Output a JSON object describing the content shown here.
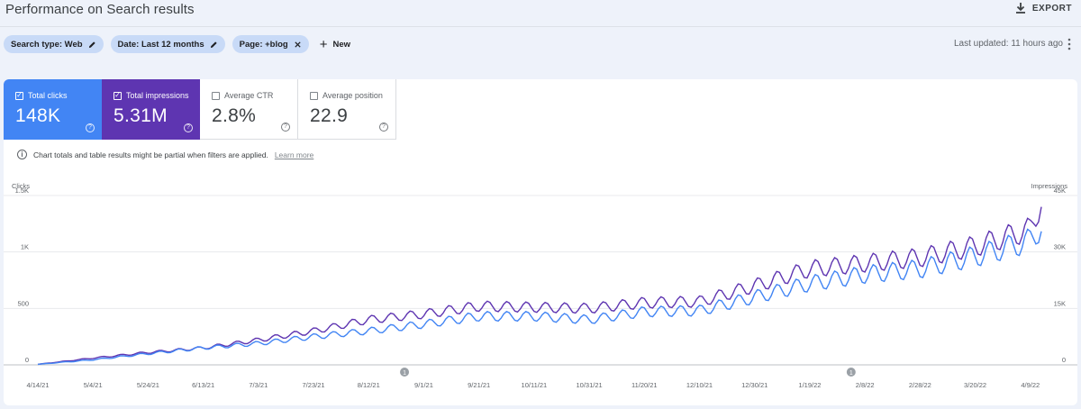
{
  "header": {
    "title": "Performance on Search results",
    "export_label": "EXPORT"
  },
  "filters": {
    "chips": [
      {
        "label": "Search type: Web",
        "icon": "pencil-icon"
      },
      {
        "label": "Date: Last 12 months",
        "icon": "pencil-icon"
      },
      {
        "label": "Page: +blog",
        "icon": "close-icon"
      }
    ],
    "new_label": "New",
    "last_updated": "Last updated: 11 hours ago"
  },
  "metrics": [
    {
      "label": "Total clicks",
      "value": "148K",
      "checked": true,
      "color": "#4285f4"
    },
    {
      "label": "Total impressions",
      "value": "5.31M",
      "checked": true,
      "color": "#5e35b1"
    },
    {
      "label": "Average CTR",
      "value": "2.8%",
      "checked": false
    },
    {
      "label": "Average position",
      "value": "22.9",
      "checked": false
    }
  ],
  "notice": {
    "text": "Chart totals and table results might be partial when filters are applied.",
    "link": "Learn more"
  },
  "chart_data": {
    "type": "line",
    "x_ticks": [
      "4/14/21",
      "5/4/21",
      "5/24/21",
      "6/13/21",
      "7/3/21",
      "7/23/21",
      "8/12/21",
      "9/1/21",
      "9/21/21",
      "10/11/21",
      "10/31/21",
      "11/20/21",
      "12/10/21",
      "12/30/21",
      "1/19/22",
      "2/8/22",
      "2/28/22",
      "3/20/22",
      "4/9/22"
    ],
    "y_left": {
      "label": "Clicks",
      "ticks": [
        "1.5K",
        "1K",
        "500",
        "0"
      ],
      "range": [
        0,
        1500
      ]
    },
    "y_right": {
      "label": "Impressions",
      "ticks": [
        "45K",
        "30K",
        "15K",
        "0"
      ],
      "range": [
        0,
        45000
      ]
    },
    "grid": true,
    "annotation_markers": [
      {
        "label": "1",
        "date": "8/25/21"
      },
      {
        "label": "1",
        "date": "2/3/22"
      }
    ],
    "series_anchors": {
      "note_dates": [
        "4/14/21",
        "5/4/21",
        "5/24/21",
        "6/13/21",
        "7/3/21",
        "7/23/21",
        "8/12/21",
        "9/1/21",
        "9/21/21",
        "10/11/21",
        "10/31/21",
        "11/20/21",
        "12/10/21",
        "12/30/21",
        "1/19/22",
        "2/8/22",
        "2/28/22",
        "3/20/22",
        "4/9/22",
        "4/13/22"
      ],
      "clicks": [
        5,
        45,
        100,
        150,
        190,
        250,
        300,
        360,
        430,
        430,
        400,
        470,
        480,
        600,
        720,
        800,
        850,
        960,
        1100,
        1230
      ],
      "impressions": [
        150,
        1800,
        3300,
        4500,
        6600,
        9000,
        12000,
        13500,
        15600,
        15300,
        15000,
        16500,
        16800,
        21000,
        25500,
        27000,
        28500,
        31500,
        36000,
        43500
      ]
    }
  }
}
